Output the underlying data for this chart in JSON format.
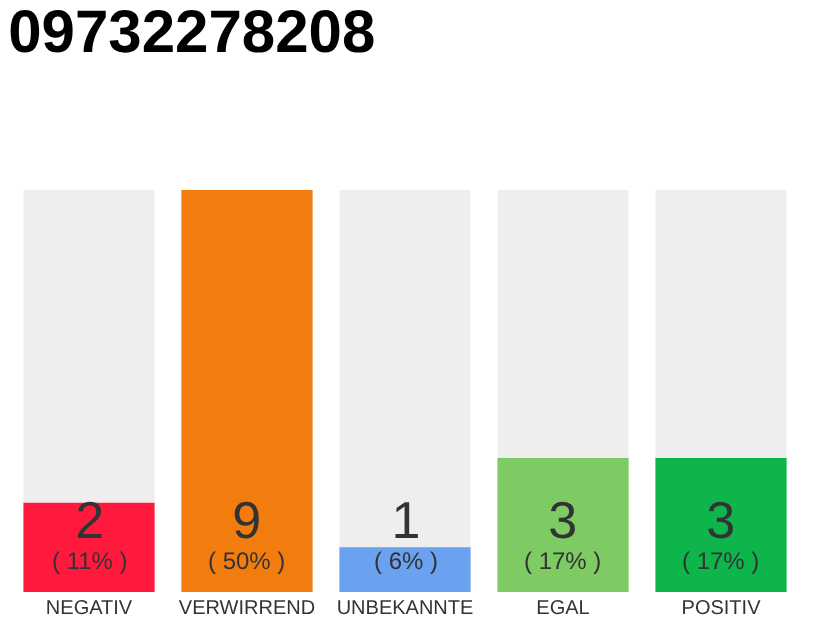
{
  "chart_data": {
    "type": "bar",
    "title": "09732278208",
    "categories": [
      "NEGATIV",
      "VERWIRREND",
      "UNBEKANNTE",
      "EGAL",
      "POSITIV"
    ],
    "values": [
      2,
      9,
      1,
      3,
      3
    ],
    "colors": [
      "#ff1a3d",
      "#f27c0e",
      "#6aa2ef",
      "#7dcb62",
      "#0db54b"
    ],
    "value_labels": [
      "2\n( 11% )",
      "9\n( 50% )",
      "1\n( 6% )",
      "3\n( 17% )",
      "3\n( 17% )"
    ]
  }
}
